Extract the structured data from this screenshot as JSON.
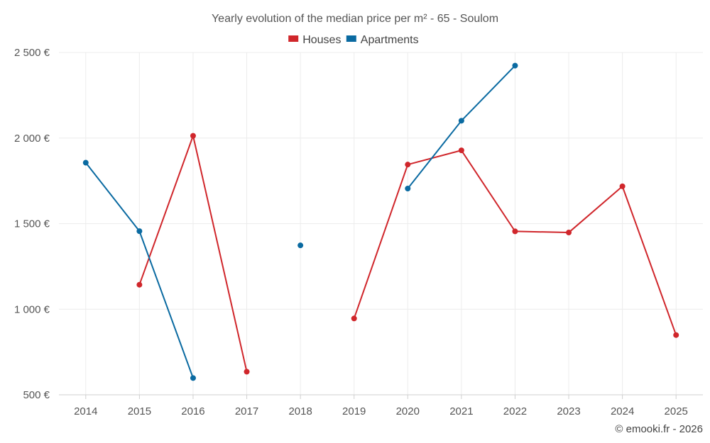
{
  "chart_data": {
    "type": "line",
    "title": "Yearly evolution of the median price per m² - 65 - Soulom",
    "xlabel": "",
    "ylabel": "",
    "categories": [
      "2014",
      "2015",
      "2016",
      "2017",
      "2018",
      "2019",
      "2020",
      "2021",
      "2022",
      "2023",
      "2024",
      "2025"
    ],
    "ylim": [
      500,
      2500
    ],
    "yticks": [
      500,
      1000,
      1500,
      2000,
      2500
    ],
    "ytick_labels": [
      "500 €",
      "1 000 €",
      "1 500 €",
      "2 000 €",
      "2 500 €"
    ],
    "grid": true,
    "legend_position": "top-center",
    "series": [
      {
        "name": "Houses",
        "color": "#d0262b",
        "values": [
          null,
          1143,
          2013,
          635,
          null,
          946,
          1845,
          1928,
          1455,
          1448,
          1718,
          849
        ]
      },
      {
        "name": "Apartments",
        "color": "#0a6aa1",
        "values": [
          1856,
          1456,
          598,
          null,
          1373,
          null,
          1705,
          2101,
          2423,
          null,
          null,
          null
        ]
      }
    ],
    "credit": "© emooki.fr - 2026"
  }
}
